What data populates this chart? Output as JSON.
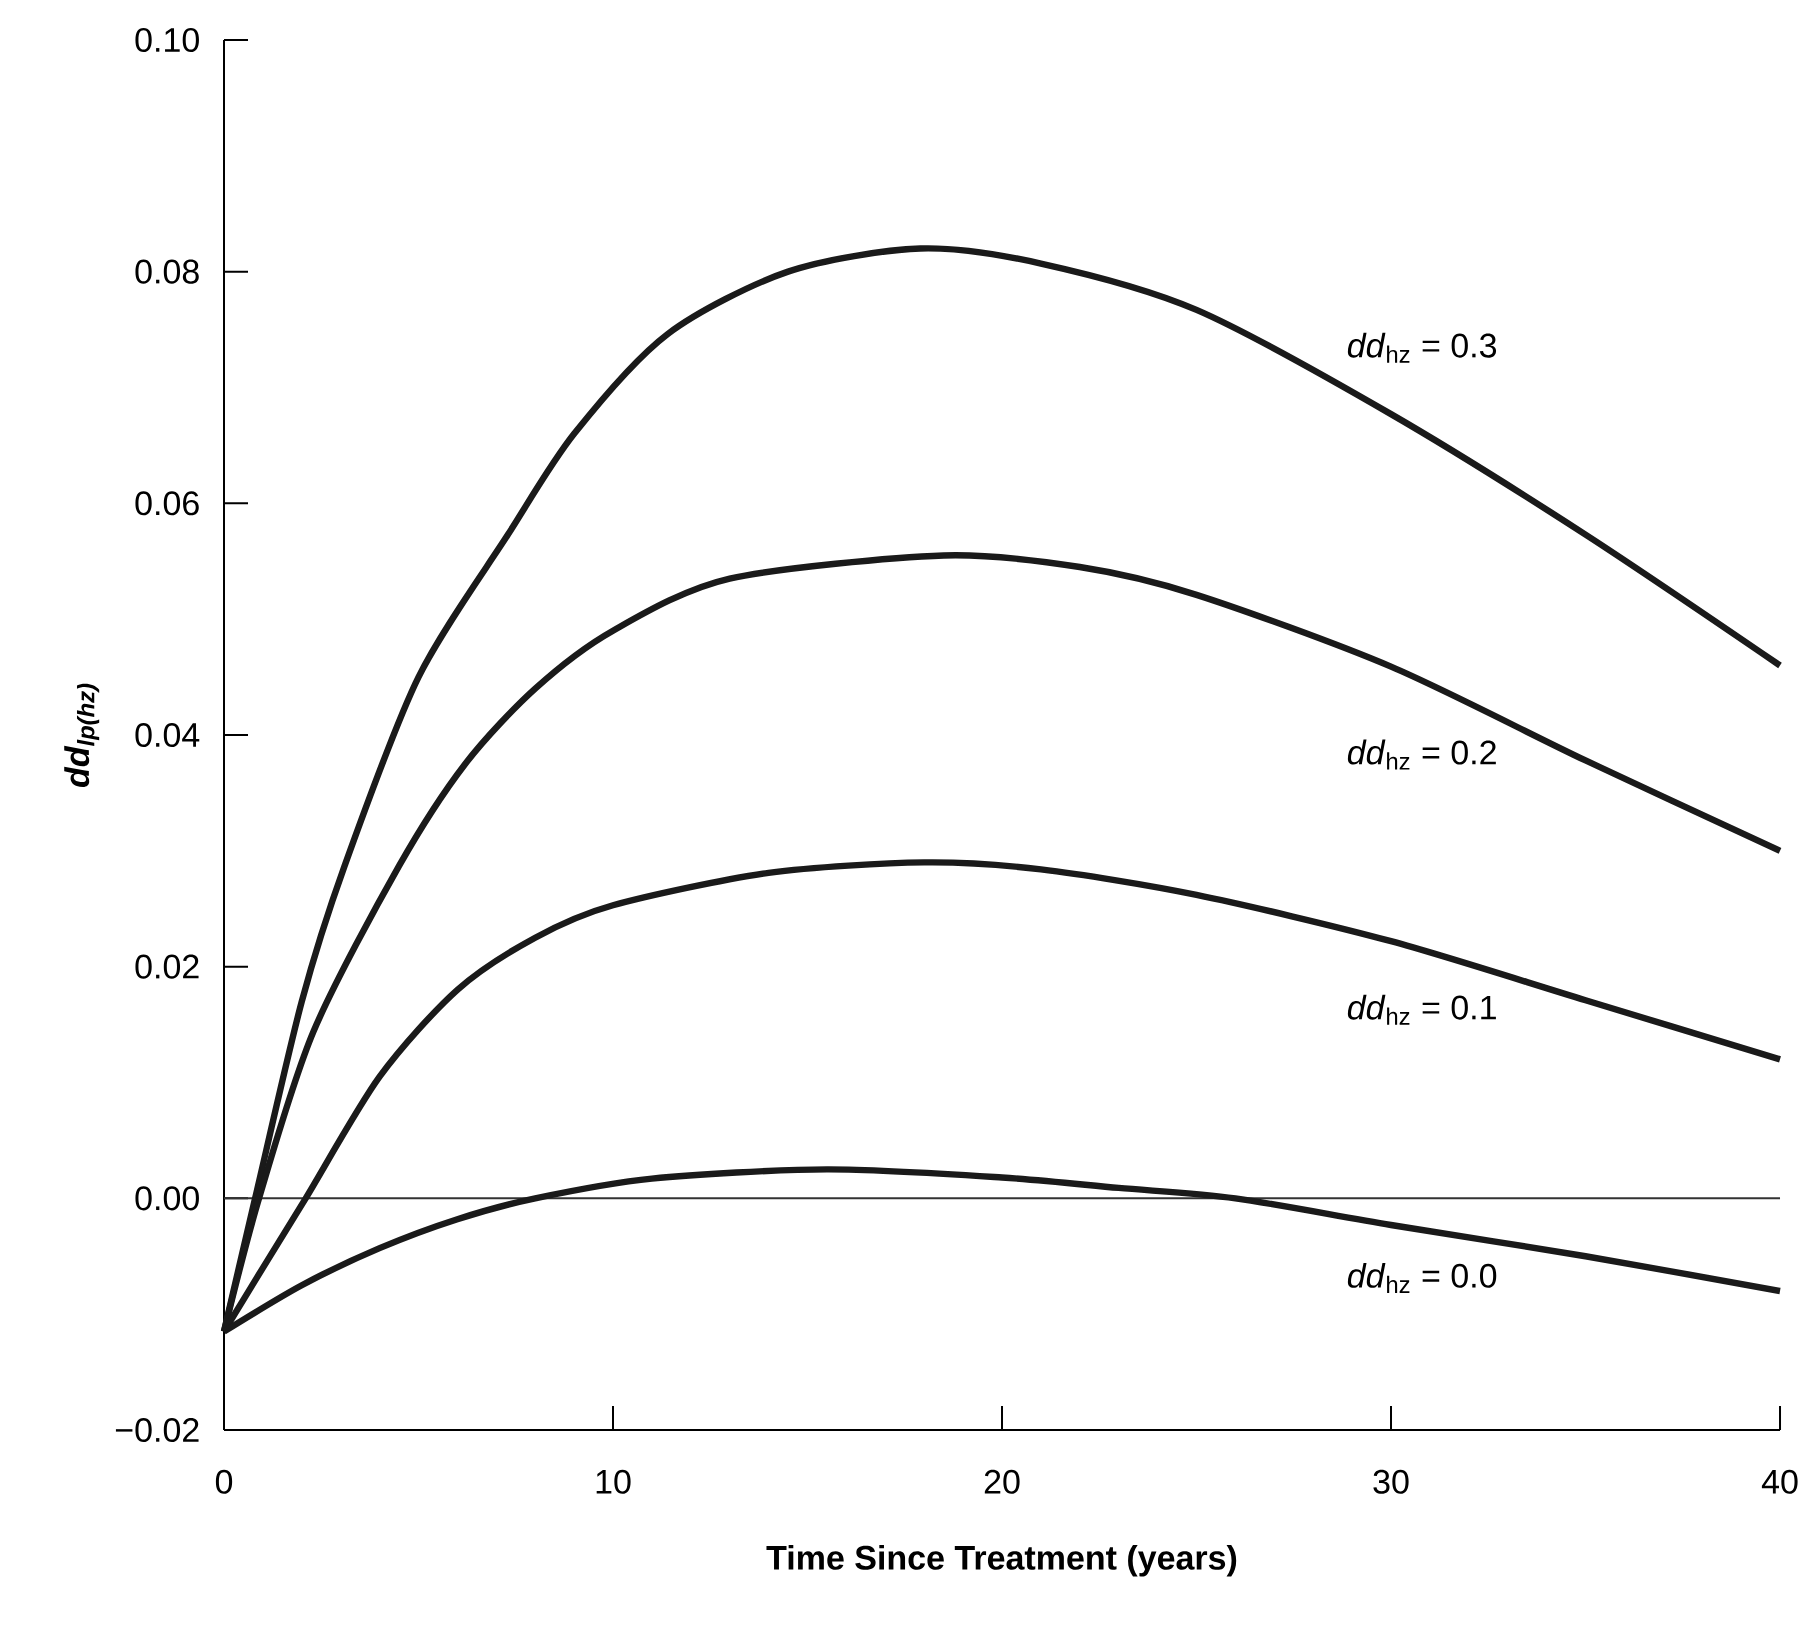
{
  "chart_data": {
    "type": "line",
    "xlabel": "Time Since Treatment (years)",
    "ylabel": "dd$_{lp(hz)}$",
    "xlim": [
      0,
      40
    ],
    "ylim": [
      -0.02,
      0.1
    ],
    "xticks": [
      0,
      10,
      20,
      30,
      40
    ],
    "yticks": [
      {
        "value": -0.02,
        "label": "−0.02"
      },
      {
        "value": 0,
        "label": "0.00"
      },
      {
        "value": 0.02,
        "label": "0.02"
      },
      {
        "value": 0.04,
        "label": "0.04"
      },
      {
        "value": 0.06,
        "label": "0.06"
      },
      {
        "value": 0.08,
        "label": "0.08"
      },
      {
        "value": 0.1,
        "label": "0.10"
      }
    ],
    "grid": false,
    "marker": "none",
    "line_style": "solid",
    "series": [
      {
        "name": "*dd*$_{hz}$ = 0.3",
        "color": "#1a1a1a",
        "x": [
          0,
          0.8,
          2,
          3.1,
          5,
          7.3,
          9,
          11.4,
          14.5,
          17.9,
          21,
          25,
          30,
          35,
          40
        ],
        "values": [
          -0.0115,
          0,
          0.017,
          0.0287,
          0.045,
          0.0573,
          0.066,
          0.0746,
          0.08,
          0.082,
          0.0807,
          0.0767,
          0.0677,
          0.0573,
          0.046
        ]
      },
      {
        "name": "*dd*$_{hz}$ = 0.2",
        "color": "#1a1a1a",
        "x": [
          0,
          0.9,
          2.3,
          4.5,
          6.2,
          8,
          10,
          13,
          18.5,
          22,
          25,
          30,
          35,
          40
        ],
        "values": [
          -0.0115,
          0,
          0.0144,
          0.0287,
          0.0375,
          0.044,
          0.049,
          0.0535,
          0.0555,
          0.0545,
          0.0521,
          0.0459,
          0.0378,
          0.03
        ]
      },
      {
        "name": "*dd*$_{hz}$ = 0.1",
        "color": "#1a1a1a",
        "x": [
          0,
          1,
          2.1,
          4,
          6,
          8,
          10,
          14,
          18,
          21,
          25,
          30,
          35,
          40
        ],
        "values": [
          -0.0115,
          -0.006,
          0,
          0.0105,
          0.018,
          0.0225,
          0.0253,
          0.0281,
          0.029,
          0.0284,
          0.0262,
          0.0222,
          0.0171,
          0.012
        ]
      },
      {
        "name": "*dd*$_{hz}$ = 0.0",
        "color": "#1a1a1a",
        "x": [
          0,
          2,
          4,
          6,
          8,
          11,
          15.5,
          20,
          23,
          26,
          30,
          35,
          40
        ],
        "values": [
          -0.0115,
          -0.0075,
          -0.0043,
          -0.0018,
          0,
          0.0017,
          0.0025,
          0.0018,
          0.0009,
          0,
          -0.0023,
          -0.005,
          -0.008
        ]
      }
    ],
    "ref_lines": [
      {
        "axis": "y",
        "value": 0,
        "color": "#333333",
        "line_style": "solid"
      }
    ]
  }
}
